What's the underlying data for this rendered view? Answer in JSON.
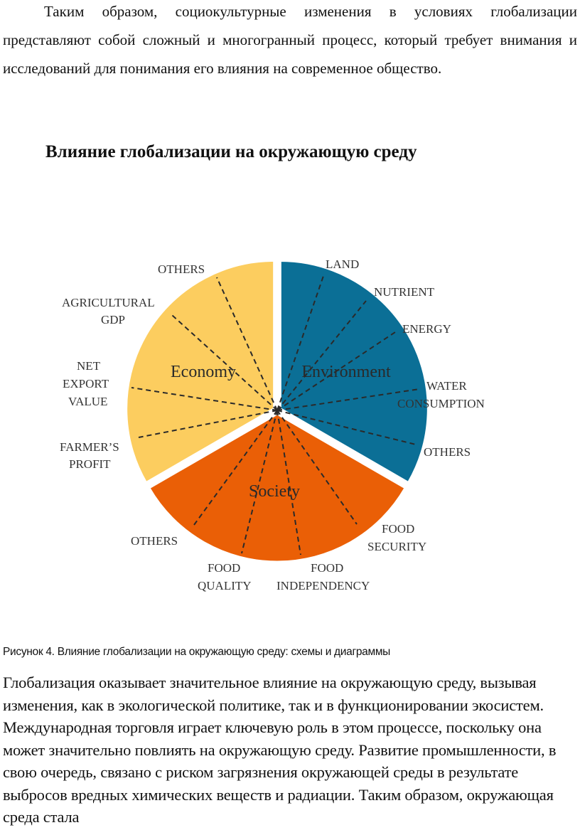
{
  "intro_paragraph": "Таким образом, социокультурные изменения в условиях глобализации представляют собой сложный и многогранный процесс, который требует внимания и исследований для понимания его влияния на современное общество.",
  "heading": "Влияние глобализации на окружающую среду",
  "diagram": {
    "colors": {
      "environment": "#0b6f96",
      "society": "#ea5f06",
      "economy": "#fccd5f"
    },
    "categories": [
      "Environment",
      "Society",
      "Economy"
    ],
    "environment_labels": [
      "LAND",
      "NUTRIENT",
      "ENERGY",
      "WATER",
      "CONSUMPTION",
      "OTHERS"
    ],
    "society_labels": [
      "FOOD",
      "SECURITY",
      "FOOD",
      "INDEPENDENCY",
      "FOOD",
      "QUALITY",
      "OTHERS"
    ],
    "economy_labels": [
      "OTHERS",
      "AGRICULTURAL",
      "GDP",
      "NET",
      "EXPORT",
      "VALUE",
      "FARMER’S",
      "PROFIT"
    ]
  },
  "caption": "Рисунок 4. Влияние глобализации на окружающую среду: схемы и диаграммы",
  "body_paragraph": "Глобализация оказывает значительное влияние на окружающую среду, вызывая изменения, как в экологической политике, так и в функционировании экосистем. Международная торговля играет ключевую роль в этом процессе, поскольку она может значительно повлиять на окружающую среду. Развитие промышленности, в свою очередь, связано с риском загрязнения окружающей среды в результате выбросов вредных химических веществ и радиации. Таким образом, окружающая среда стала"
}
